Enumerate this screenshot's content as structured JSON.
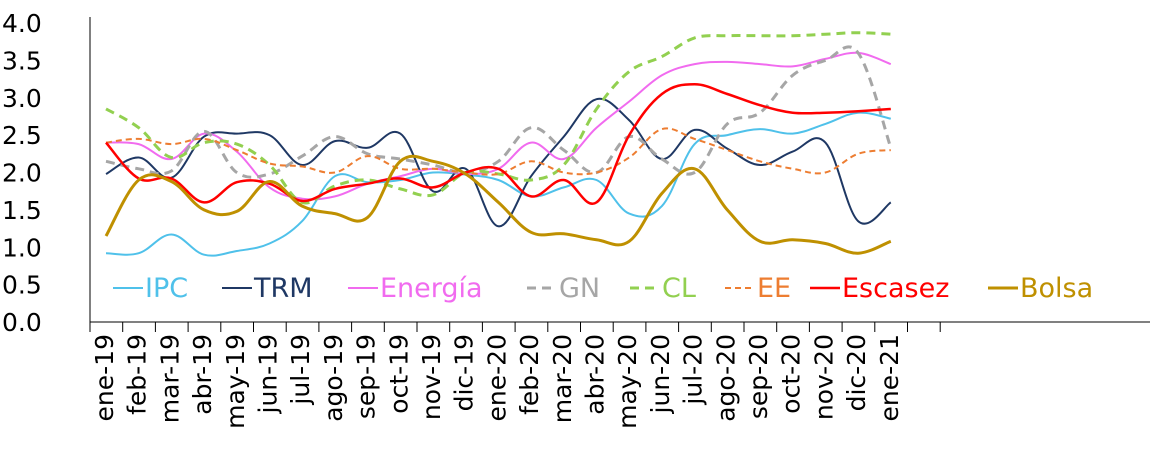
{
  "chart_data": {
    "type": "line",
    "title": "",
    "xlabel": "",
    "ylabel": "",
    "ylim": [
      0,
      4.0
    ],
    "yticks": [
      "0.0",
      "0.5",
      "1.0",
      "1.5",
      "2.0",
      "2.5",
      "3.0",
      "3.5",
      "4.0"
    ],
    "grid": false,
    "smooth": true,
    "legend_position": "inside-bottom",
    "categories": [
      "ene-19",
      "feb-19",
      "mar-19",
      "abr-19",
      "may-19",
      "jun-19",
      "jul-19",
      "ago-19",
      "sep-19",
      "oct-19",
      "nov-19",
      "dic-19",
      "ene-20",
      "feb-20",
      "mar-20",
      "abr-20",
      "may-20",
      "jun-20",
      "jul-20",
      "ago-20",
      "sep-20",
      "oct-20",
      "nov-20",
      "dic-20",
      "ene-21"
    ],
    "series": [
      {
        "name": "IPC",
        "color": "#4FC1EA",
        "dash": "solid",
        "width": 2,
        "values": [
          0.92,
          0.92,
          1.17,
          0.9,
          0.95,
          1.05,
          1.35,
          1.95,
          1.87,
          1.9,
          2.0,
          1.97,
          1.9,
          1.68,
          1.8,
          1.9,
          1.45,
          1.55,
          2.38,
          2.5,
          2.58,
          2.52,
          2.65,
          2.8,
          2.72
        ]
      },
      {
        "name": "TRM",
        "color": "#1F3864",
        "dash": "solid",
        "width": 2,
        "values": [
          1.98,
          2.2,
          1.93,
          2.48,
          2.52,
          2.5,
          2.1,
          2.42,
          2.33,
          2.52,
          1.75,
          2.05,
          1.28,
          1.95,
          2.48,
          2.98,
          2.7,
          2.18,
          2.57,
          2.32,
          2.1,
          2.28,
          2.4,
          1.35,
          1.6
        ]
      },
      {
        "name": "Energía",
        "color": "#F16BEF",
        "dash": "solid",
        "width": 2,
        "values": [
          2.4,
          2.38,
          2.18,
          2.52,
          2.28,
          1.8,
          1.65,
          1.68,
          1.85,
          1.95,
          2.05,
          1.98,
          2.05,
          2.4,
          2.18,
          2.6,
          2.95,
          3.3,
          3.45,
          3.48,
          3.45,
          3.42,
          3.52,
          3.6,
          3.45
        ]
      },
      {
        "name": "GN",
        "color": "#A6A6A6",
        "dash": "long",
        "width": 3,
        "values": [
          2.15,
          2.05,
          2.02,
          2.55,
          2.0,
          1.98,
          2.22,
          2.48,
          2.25,
          2.18,
          2.1,
          2.0,
          2.15,
          2.6,
          2.3,
          2.0,
          2.48,
          2.18,
          2.0,
          2.65,
          2.8,
          3.3,
          3.5,
          3.6,
          2.33
        ]
      },
      {
        "name": "CL",
        "color": "#92D050",
        "dash": "long",
        "width": 3,
        "values": [
          2.85,
          2.6,
          2.2,
          2.4,
          2.38,
          2.1,
          1.6,
          1.82,
          1.9,
          1.78,
          1.7,
          2.0,
          1.98,
          1.9,
          2.1,
          2.85,
          3.35,
          3.55,
          3.8,
          3.83,
          3.83,
          3.83,
          3.85,
          3.87,
          3.85
        ]
      },
      {
        "name": "EE",
        "color": "#ED7D31",
        "dash": "short",
        "width": 2,
        "values": [
          2.4,
          2.45,
          2.38,
          2.45,
          2.3,
          2.12,
          2.08,
          2.0,
          2.22,
          2.05,
          2.05,
          2.0,
          1.98,
          2.15,
          2.0,
          2.0,
          2.2,
          2.58,
          2.45,
          2.3,
          2.15,
          2.05,
          2.0,
          2.25,
          2.3
        ]
      },
      {
        "name": "Escasez",
        "color": "#FF0000",
        "dash": "solid",
        "width": 2.5,
        "values": [
          2.4,
          1.92,
          1.92,
          1.6,
          1.87,
          1.85,
          1.62,
          1.78,
          1.85,
          1.92,
          1.8,
          2.0,
          2.05,
          1.68,
          1.9,
          1.6,
          2.5,
          3.05,
          3.18,
          3.05,
          2.9,
          2.8,
          2.8,
          2.82,
          2.85
        ]
      },
      {
        "name": "Bolsa",
        "color": "#BF9000",
        "dash": "solid",
        "width": 3,
        "values": [
          1.15,
          1.9,
          1.88,
          1.5,
          1.48,
          1.88,
          1.55,
          1.45,
          1.4,
          2.15,
          2.15,
          1.98,
          1.6,
          1.2,
          1.18,
          1.1,
          1.08,
          1.72,
          2.05,
          1.5,
          1.08,
          1.1,
          1.05,
          0.92,
          1.08
        ]
      }
    ]
  }
}
